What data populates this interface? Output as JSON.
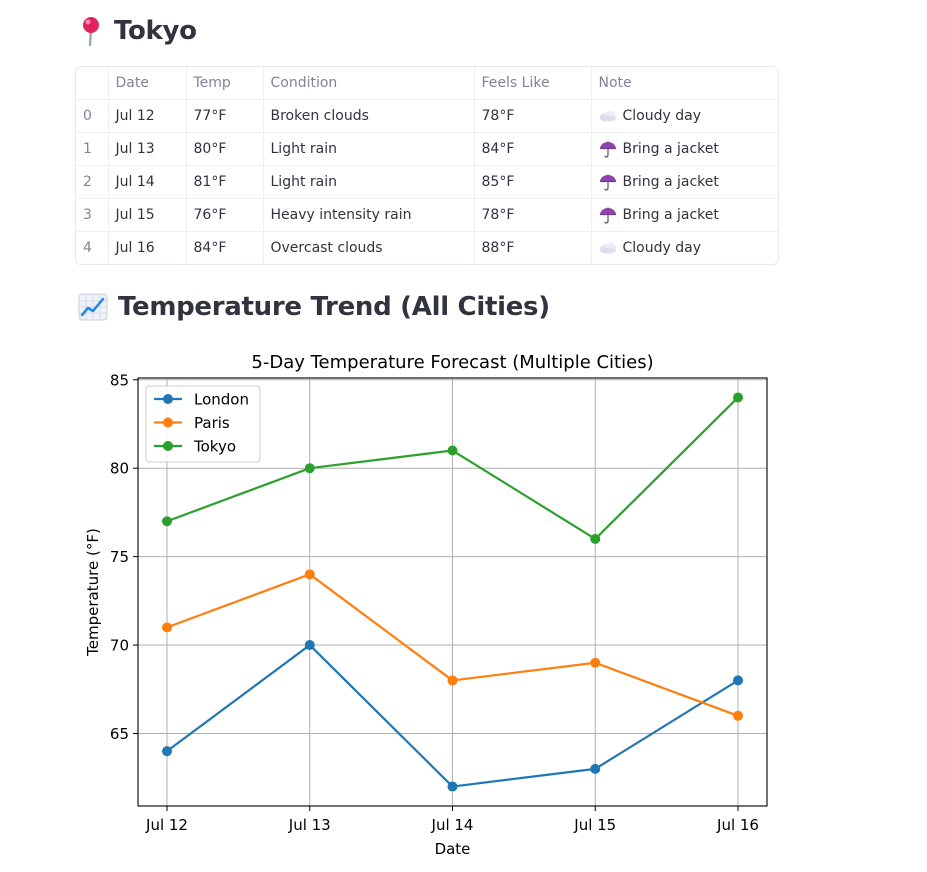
{
  "tokyo_section": {
    "title": "Tokyo",
    "icon": "round-pushpin-icon",
    "table": {
      "columns": [
        "",
        "Date",
        "Temp",
        "Condition",
        "Feels Like",
        "Note"
      ],
      "rows": [
        {
          "index": "0",
          "date": "Jul 12",
          "temp": "77°F",
          "condition": "Broken clouds",
          "feels_like": "78°F",
          "note": "Cloudy day",
          "note_icon": "cloud-icon"
        },
        {
          "index": "1",
          "date": "Jul 13",
          "temp": "80°F",
          "condition": "Light rain",
          "feels_like": "84°F",
          "note": "Bring a jacket",
          "note_icon": "umbrella-icon"
        },
        {
          "index": "2",
          "date": "Jul 14",
          "temp": "81°F",
          "condition": "Light rain",
          "feels_like": "85°F",
          "note": "Bring a jacket",
          "note_icon": "umbrella-icon"
        },
        {
          "index": "3",
          "date": "Jul 15",
          "temp": "76°F",
          "condition": "Heavy intensity rain",
          "feels_like": "78°F",
          "note": "Bring a jacket",
          "note_icon": "umbrella-icon"
        },
        {
          "index": "4",
          "date": "Jul 16",
          "temp": "84°F",
          "condition": "Overcast clouds",
          "feels_like": "88°F",
          "note": "Cloudy day",
          "note_icon": "cloud-icon"
        }
      ]
    }
  },
  "trend_section": {
    "title": "Temperature Trend (All Cities)",
    "icon": "chart-increasing-icon"
  },
  "chart_data": {
    "type": "line",
    "title": "5-Day Temperature Forecast (Multiple Cities)",
    "xlabel": "Date",
    "ylabel": "Temperature (°F)",
    "categories": [
      "Jul 12",
      "Jul 13",
      "Jul 14",
      "Jul 15",
      "Jul 16"
    ],
    "ylim": [
      60.9,
      85.1
    ],
    "yticks": [
      65,
      70,
      75,
      80,
      85
    ],
    "grid": true,
    "legend_position": "upper-left",
    "series": [
      {
        "name": "London",
        "color": "#1f77b4",
        "values": [
          64,
          70,
          62,
          63,
          68
        ]
      },
      {
        "name": "Paris",
        "color": "#ff7f0e",
        "values": [
          71,
          74,
          68,
          69,
          66
        ]
      },
      {
        "name": "Tokyo",
        "color": "#2ca02c",
        "values": [
          77,
          80,
          81,
          76,
          84
        ]
      }
    ]
  }
}
